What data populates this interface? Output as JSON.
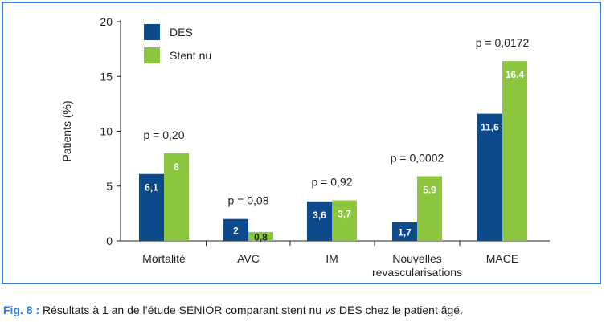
{
  "chart_data": {
    "type": "bar",
    "ylabel": "Patients (%)",
    "ylim": [
      0,
      20
    ],
    "yticks": [
      0,
      5,
      10,
      15,
      20
    ],
    "grid": false,
    "legend_position": "top-left",
    "categories": [
      [
        "Mortalité"
      ],
      [
        "AVC"
      ],
      [
        "IM"
      ],
      [
        "Nouvelles",
        "revascularisations"
      ],
      [
        "MACE"
      ]
    ],
    "series": [
      {
        "name": "DES",
        "color": "#0d4a8c",
        "values": [
          6.1,
          2,
          3.6,
          1.7,
          11.6
        ],
        "labels": [
          "6,1",
          "2",
          "3,6",
          "1,7",
          "11,6"
        ]
      },
      {
        "name": "Stent nu",
        "color": "#8cc63f",
        "values": [
          8,
          0.8,
          3.7,
          5.9,
          16.4
        ],
        "labels": [
          "8",
          "0,8",
          "3,7",
          "5.9",
          "16.4"
        ]
      }
    ],
    "annotations": [
      "p = 0,20",
      "p = 0,08",
      "p = 0,92",
      "p = 0,0002",
      "p = 0,0172"
    ]
  },
  "caption": {
    "fig": "Fig. 8 :",
    "part1": " Résultats à 1 an de l’étude SENIOR comparant stent nu ",
    "vs": "vs",
    "part2": " DES chez le patient âgé."
  }
}
